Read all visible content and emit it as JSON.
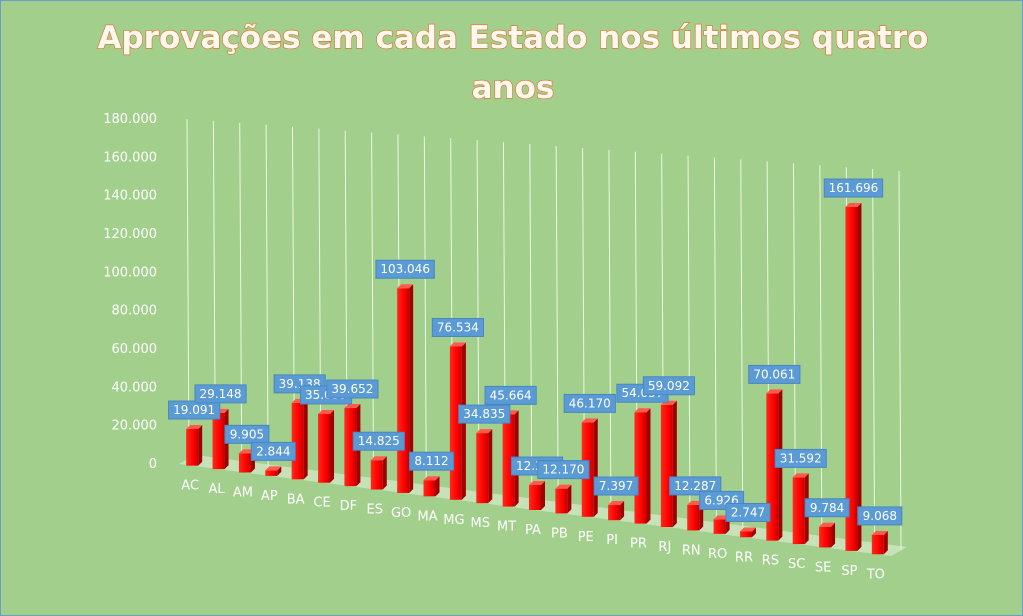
{
  "chart_data": {
    "type": "bar",
    "title_lines": [
      "Aprovações em cada Estado nos últimos quatro",
      "anos"
    ],
    "categories": [
      "AC",
      "AL",
      "AM",
      "AP",
      "BA",
      "CE",
      "DF",
      "ES",
      "GO",
      "MA",
      "MG",
      "MS",
      "MT",
      "PA",
      "PB",
      "PE",
      "PI",
      "PR",
      "RJ",
      "RN",
      "RO",
      "RR",
      "RS",
      "SC",
      "SE",
      "SP",
      "TO"
    ],
    "values": [
      19091,
      29148,
      9905,
      2844,
      39138,
      35059,
      39652,
      14825,
      103046,
      8112,
      76534,
      34835,
      45664,
      12304,
      12170,
      46170,
      7397,
      54057,
      59092,
      12287,
      6926,
      2747,
      70061,
      31592,
      9784,
      161696,
      9068
    ],
    "value_labels": [
      "19.091",
      "29.148",
      "9.905",
      "2.844",
      "39.138",
      "35.059",
      "39.652",
      "14.825",
      "103.046",
      "8.112",
      "76.534",
      "34.835",
      "45.664",
      "12.304",
      "12.170",
      "46.170",
      "7.397",
      "54.057",
      "59.092",
      "12.287",
      "6.926",
      "2.747",
      "70.061",
      "31.592",
      "9.784",
      "161.696",
      "9.068"
    ],
    "ylim": [
      0,
      180000
    ],
    "yticks": [
      0,
      20000,
      40000,
      60000,
      80000,
      100000,
      120000,
      140000,
      160000,
      180000
    ],
    "ytick_labels": [
      "0",
      "20.000",
      "40.000",
      "60.000",
      "80.000",
      "100.000",
      "120.000",
      "140.000",
      "160.000",
      "180.000"
    ],
    "bar_color": "#ff0000",
    "label_box_color": "#5b9bd5",
    "gridlines": true,
    "legend": "none",
    "style": "3d-perspective"
  }
}
